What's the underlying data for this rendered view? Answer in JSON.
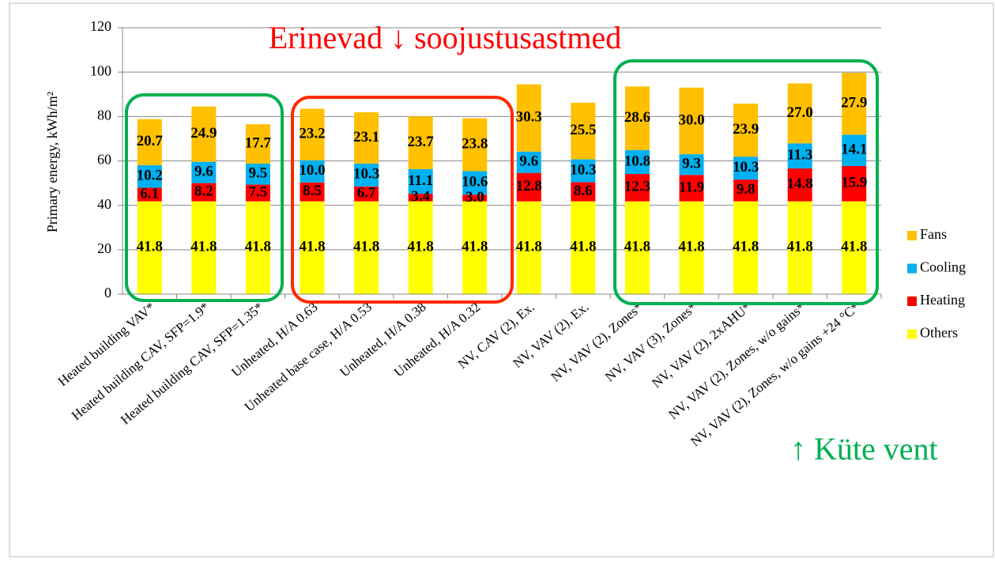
{
  "chart_data": {
    "type": "stacked_bar",
    "title": "Erinevad ↓ soojustusastmed",
    "annotation": "↑ Küte vent",
    "y_label": "Primary energy, kWh/m²",
    "categories": [
      "Heated building VAV*",
      "Heated building CAV, SFP=1.9*",
      "Heated building CAV, SFP=1.35*",
      "Unheated, H/A 0.63",
      "Unheated base case, H/A 0.53",
      "Unheated, H/A 0.38",
      "Unheated, H/A 0.32",
      "NV, CAV (2), Ex.",
      "NV, VAV (2), Ex.",
      "NV, VAV (2), Zones*",
      "NV, VAV (3), Zones*",
      "NV, VAV (2), 2xAHU*",
      "NV, VAV (2), Zones, w/o gains*",
      "NV, VAV (2), Zones, w/o gains +24 °C*"
    ],
    "series": [
      {
        "name": "Others",
        "color": "#ffff00",
        "values": [
          41.8,
          41.8,
          41.8,
          41.8,
          41.8,
          41.8,
          41.8,
          41.8,
          41.8,
          41.8,
          41.8,
          41.8,
          41.8,
          41.8
        ],
        "value_labels": [
          "41.8",
          "41.8",
          "41.8",
          "41.8",
          "41.8",
          "41.8",
          "41.8",
          "41.8",
          "41.8",
          "41.8",
          "41.8",
          "41.8",
          "41.8",
          "41.8"
        ]
      },
      {
        "name": "Heating",
        "color": "#ff0000",
        "values": [
          6.1,
          8.2,
          7.5,
          8.5,
          6.7,
          3.4,
          3.0,
          12.8,
          8.6,
          12.3,
          11.9,
          9.8,
          14.8,
          15.9
        ],
        "value_labels": [
          "6.1",
          "8.2",
          "7.5",
          "8.5",
          "6.7",
          "3.4",
          "3.0",
          "12.8",
          "8.6",
          "12.3",
          "11.9",
          "9.8",
          "14.8",
          "15.9"
        ]
      },
      {
        "name": "Cooling",
        "color": "#00b0f0",
        "values": [
          10.2,
          9.6,
          9.5,
          10.0,
          10.3,
          11.1,
          10.6,
          9.6,
          10.3,
          10.8,
          9.3,
          10.3,
          11.3,
          14.1
        ],
        "value_labels": [
          "10.2",
          "9.6",
          "9.5",
          "10.0",
          "10.3",
          "11.1",
          "10.6",
          "9.6",
          "10.3",
          "10.8",
          "9.3",
          "10.3",
          "11.3",
          "14.1"
        ]
      },
      {
        "name": "Fans",
        "color": "#ffc000",
        "values": [
          20.7,
          24.9,
          17.7,
          23.2,
          23.1,
          23.7,
          23.8,
          30.3,
          25.5,
          28.6,
          30.0,
          23.9,
          27.0,
          27.9
        ],
        "value_labels": [
          "20.7",
          "24.9",
          "17.7",
          "23.2",
          "23.1",
          "23.7",
          "23.8",
          "30.3",
          "25.5",
          "28.6",
          "30.0",
          "23.9",
          "27.0",
          "27.9"
        ]
      }
    ],
    "ylim": [
      0,
      120
    ],
    "yticks": [
      0,
      20,
      40,
      60,
      80,
      100,
      120
    ],
    "grid": true,
    "legend": "right"
  }
}
